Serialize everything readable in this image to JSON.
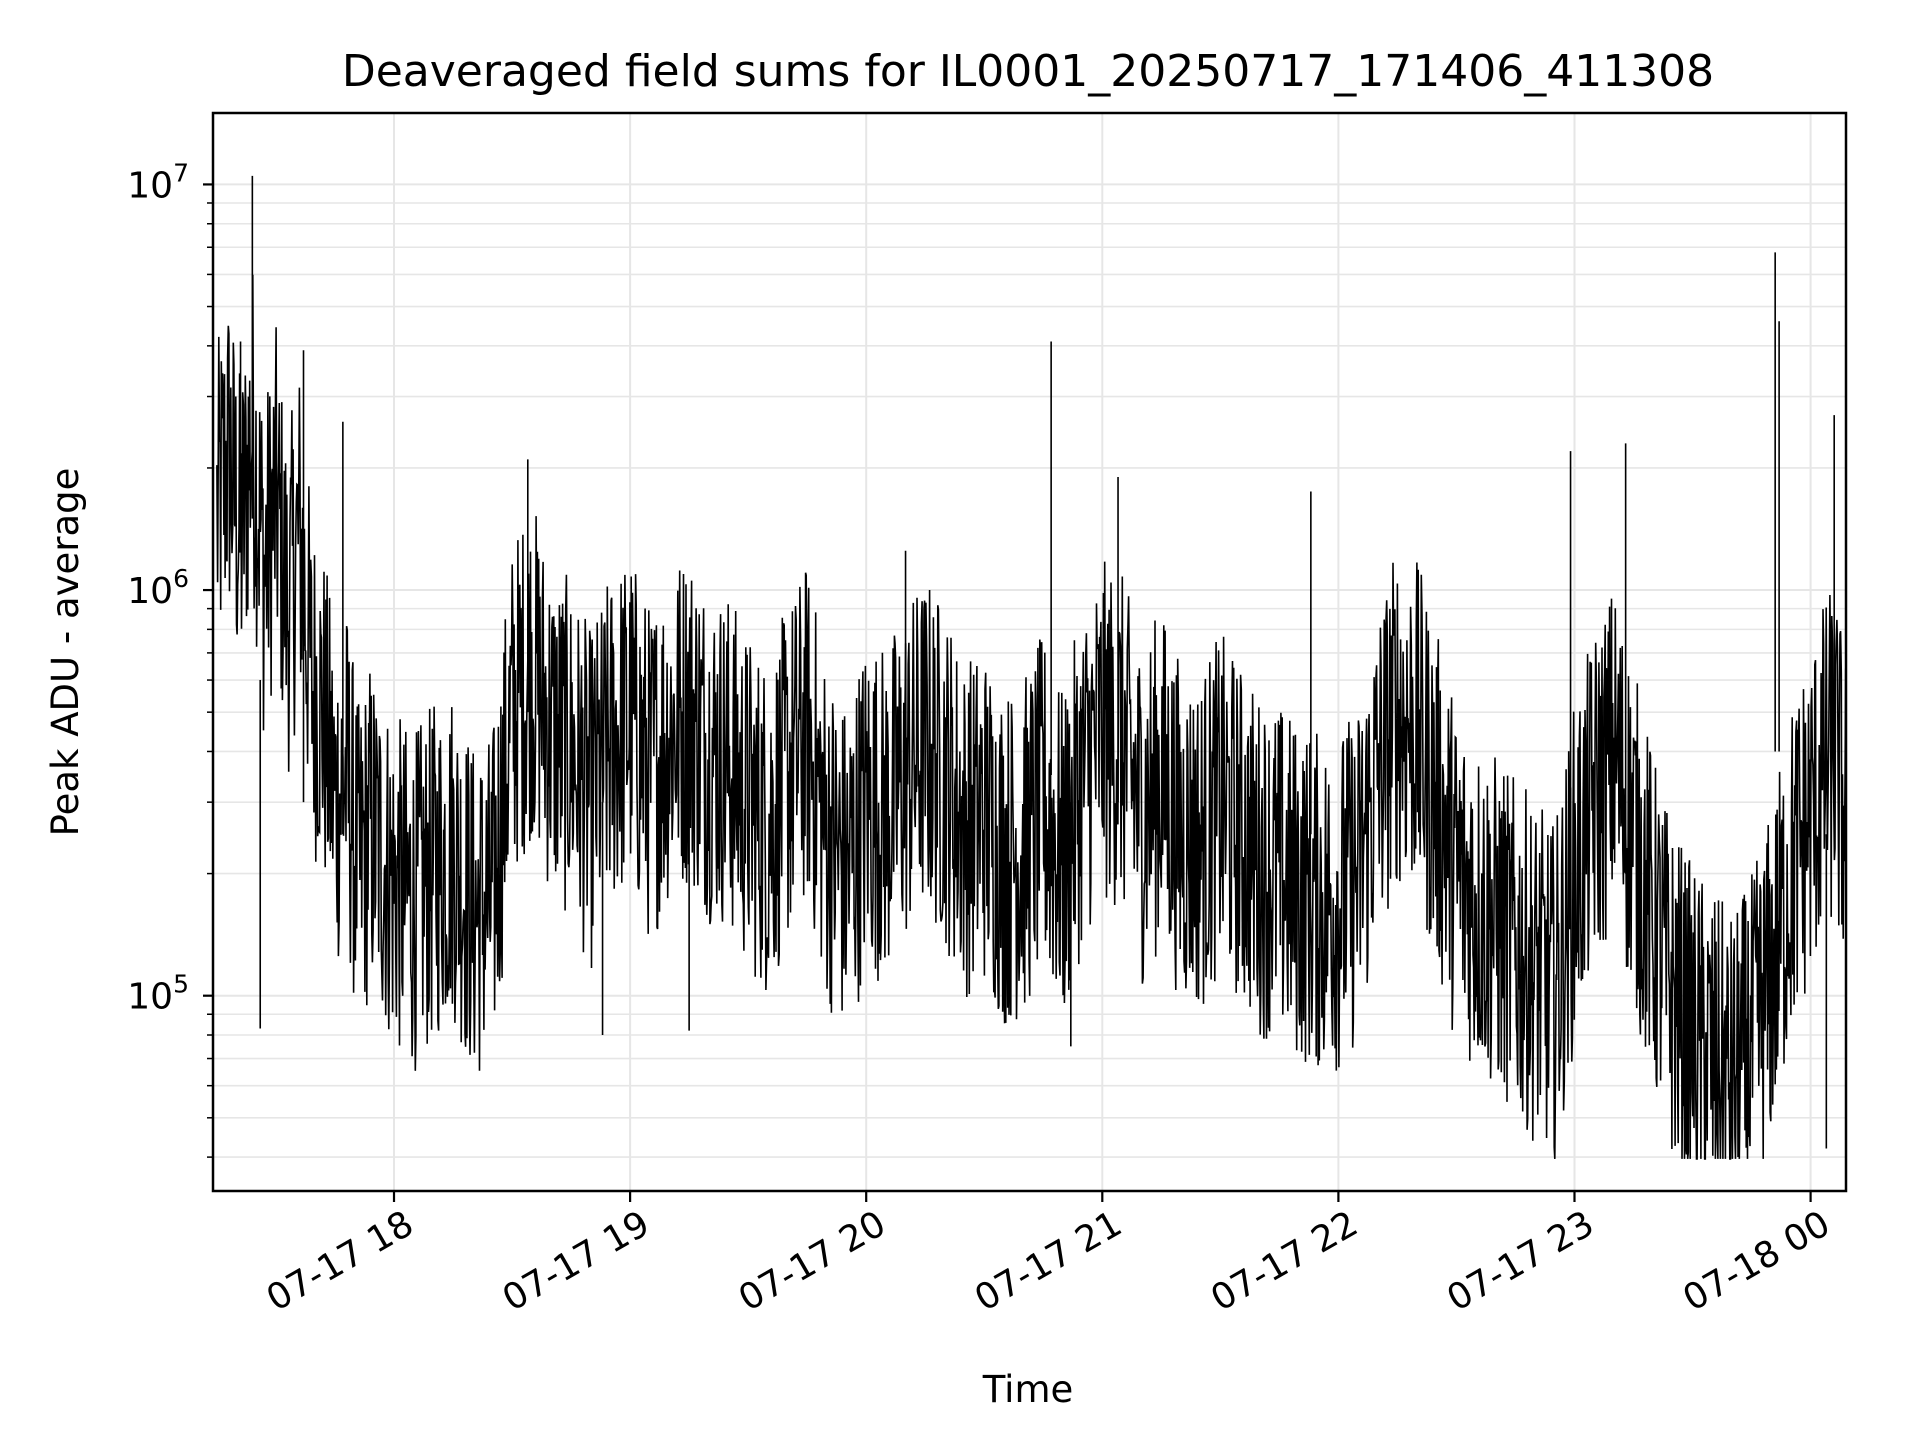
{
  "chart_data": {
    "type": "line",
    "title": "Deaveraged field sums for IL0001_20250717_171406_411308",
    "xlabel": "Time",
    "ylabel": "Peak ADU - average",
    "yscale": "log",
    "ylim": [
      33000,
      15000000
    ],
    "xlim": [
      "07-17 17:14",
      "07-18 00:09"
    ],
    "grid": true,
    "line_color": "#000000",
    "grid_color": "#e6e6e6",
    "x_ticks": [
      "07-17 18",
      "07-17 19",
      "07-17 20",
      "07-17 21",
      "07-17 22",
      "07-17 23",
      "07-18 00"
    ],
    "y_ticks": [
      {
        "value": 100000,
        "base": "10",
        "exp": "5"
      },
      {
        "value": 1000000,
        "base": "10",
        "exp": "6"
      },
      {
        "value": 10000000,
        "base": "10",
        "exp": "7"
      }
    ],
    "series": [
      {
        "x": [
          "07-17 17:15",
          "07-17 17:18",
          "07-17 17:21",
          "07-17 17:24",
          "07-17 17:27",
          "07-17 17:30",
          "07-17 17:33",
          "07-17 17:36",
          "07-17 17:39",
          "07-17 17:42",
          "07-17 17:45",
          "07-17 17:48",
          "07-17 17:51",
          "07-17 17:54",
          "07-17 17:57",
          "07-17 18:00",
          "07-17 18:05",
          "07-17 18:10",
          "07-17 18:15",
          "07-17 18:20",
          "07-17 18:25",
          "07-17 18:30",
          "07-17 18:35",
          "07-17 18:40",
          "07-17 18:45",
          "07-17 18:50",
          "07-17 18:55",
          "07-17 19:00",
          "07-17 19:05",
          "07-17 19:10",
          "07-17 19:15",
          "07-17 19:20",
          "07-17 19:25",
          "07-17 19:30",
          "07-17 19:35",
          "07-17 19:40",
          "07-17 19:45",
          "07-17 19:50",
          "07-17 19:55",
          "07-17 20:00",
          "07-17 20:05",
          "07-17 20:10",
          "07-17 20:15",
          "07-17 20:20",
          "07-17 20:25",
          "07-17 20:30",
          "07-17 20:35",
          "07-17 20:40",
          "07-17 20:45",
          "07-17 20:50",
          "07-17 20:55",
          "07-17 21:00",
          "07-17 21:05",
          "07-17 21:10",
          "07-17 21:15",
          "07-17 21:20",
          "07-17 21:25",
          "07-17 21:30",
          "07-17 21:35",
          "07-17 21:40",
          "07-17 21:45",
          "07-17 21:50",
          "07-17 21:55",
          "07-17 22:00",
          "07-17 22:05",
          "07-17 22:10",
          "07-17 22:15",
          "07-17 22:20",
          "07-17 22:25",
          "07-17 22:30",
          "07-17 22:35",
          "07-17 22:40",
          "07-17 22:45",
          "07-17 22:50",
          "07-17 22:55",
          "07-17 23:00",
          "07-17 23:05",
          "07-17 23:10",
          "07-17 23:15",
          "07-17 23:20",
          "07-17 23:25",
          "07-17 23:30",
          "07-17 23:35",
          "07-17 23:40",
          "07-17 23:45",
          "07-17 23:50",
          "07-17 23:55",
          "07-18 00:00",
          "07-18 00:03",
          "07-18 00:06",
          "07-18 00:08"
        ],
        "y": [
          1500000,
          2200000,
          1300000,
          2600000,
          1100000,
          1700000,
          900000,
          1400000,
          600000,
          500000,
          300000,
          350000,
          200000,
          260000,
          220000,
          190000,
          170000,
          200000,
          230000,
          160000,
          170000,
          500000,
          650000,
          450000,
          400000,
          300000,
          420000,
          480000,
          350000,
          450000,
          500000,
          400000,
          380000,
          300000,
          260000,
          350000,
          450000,
          250000,
          200000,
          300000,
          280000,
          350000,
          420000,
          350000,
          260000,
          280000,
          220000,
          230000,
          300000,
          210000,
          350000,
          450000,
          420000,
          280000,
          350000,
          250000,
          240000,
          300000,
          250000,
          210000,
          200000,
          180000,
          170000,
          170000,
          200000,
          350000,
          500000,
          450000,
          300000,
          200000,
          170000,
          150000,
          130000,
          115000,
          100000,
          200000,
          300000,
          400000,
          250000,
          150000,
          100000,
          80000,
          70000,
          60000,
          75000,
          110000,
          200000,
          280000,
          350000,
          400000,
          300000
        ]
      }
    ]
  }
}
